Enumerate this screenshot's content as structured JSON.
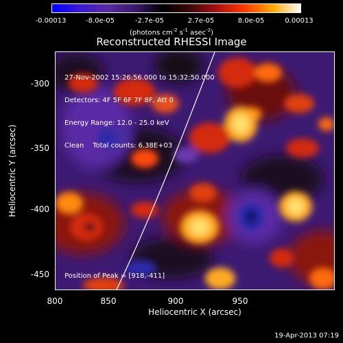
{
  "colorbar": {
    "tick_labels": [
      "-0.00013",
      "-8.0e-05",
      "-2.7e-05",
      "2.7e-05",
      "8.0e-05",
      "0.00013"
    ],
    "units_main": "(photons cm",
    "units_exp1": "-2",
    "units_mid": " s",
    "units_exp2": "-1",
    "units_mid2": " asec",
    "units_exp3": "-2",
    "units_end": ")",
    "colors": [
      "#0000ff",
      "#3a1ad6",
      "#5a2a9e",
      "#3b1a6e",
      "#000000",
      "#3a0a0a",
      "#b01010",
      "#ff3a00",
      "#ffaa00",
      "#ffffff"
    ]
  },
  "plot": {
    "title": "Reconstructed RHESSI Image",
    "info_lines": [
      "27-Nov-2002 15:26:56.000 to 15:32:50.000",
      "Detectors: 4F 5F 6F 7F 8F, Att 0",
      "Energy Range: 12.0 - 25.0 keV",
      "Clean    Total counts: 6.38E+03"
    ],
    "peak_label": "Position of Peak = [918,-411]",
    "x_axis_label": "Heliocentric X (arcsec)",
    "y_axis_label": "Heliocentric Y (arcsec)",
    "x_ticks": [
      "800",
      "850",
      "900",
      "950"
    ],
    "y_ticks": [
      "-300",
      "-350",
      "-400",
      "-450"
    ]
  },
  "footer": {
    "timestamp": "19-Apr-2013 07:19"
  }
}
